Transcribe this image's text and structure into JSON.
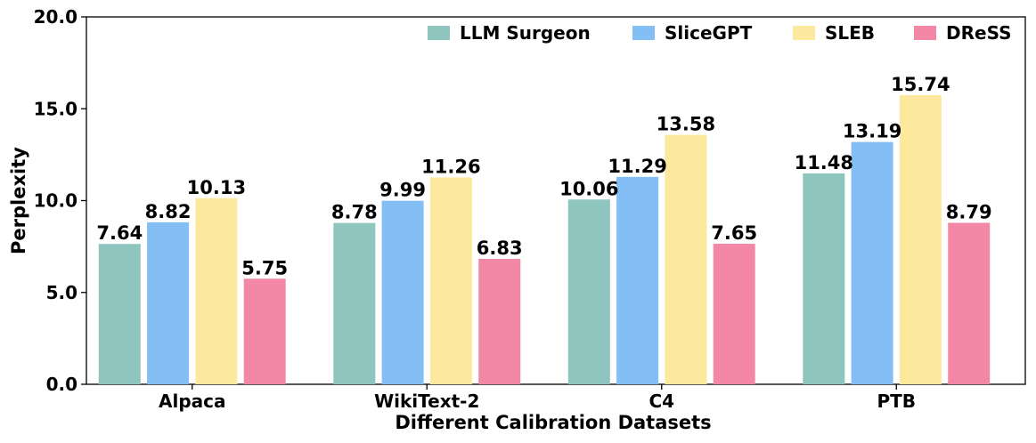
{
  "chart_data": {
    "type": "bar",
    "xlabel": "Different Calibration Datasets",
    "ylabel": "Perplexity",
    "ylim": [
      0,
      20
    ],
    "yticks": [
      "0.0",
      "5.0",
      "10.0",
      "15.0",
      "20.0"
    ],
    "categories": [
      "Alpaca",
      "WikiText-2",
      "C4",
      "PTB"
    ],
    "legend_position": "top-right",
    "series": [
      {
        "name": "LLM Surgeon",
        "color": "#8ec5bf",
        "values": [
          7.64,
          8.78,
          10.06,
          11.48
        ],
        "labels": [
          "7.64",
          "8.78",
          "10.06",
          "11.48"
        ]
      },
      {
        "name": "SliceGPT",
        "color": "#83bef5",
        "values": [
          8.82,
          9.99,
          11.29,
          13.19
        ],
        "labels": [
          "8.82",
          "9.99",
          "11.29",
          "13.19"
        ]
      },
      {
        "name": "SLEB",
        "color": "#fde99d",
        "values": [
          10.13,
          11.26,
          13.58,
          15.74
        ],
        "labels": [
          "10.13",
          "11.26",
          "13.58",
          "15.74"
        ]
      },
      {
        "name": "DReSS",
        "color": "#f288a6",
        "values": [
          5.75,
          6.83,
          7.65,
          8.79
        ],
        "labels": [
          "5.75",
          "6.83",
          "7.65",
          "8.79"
        ]
      }
    ]
  }
}
